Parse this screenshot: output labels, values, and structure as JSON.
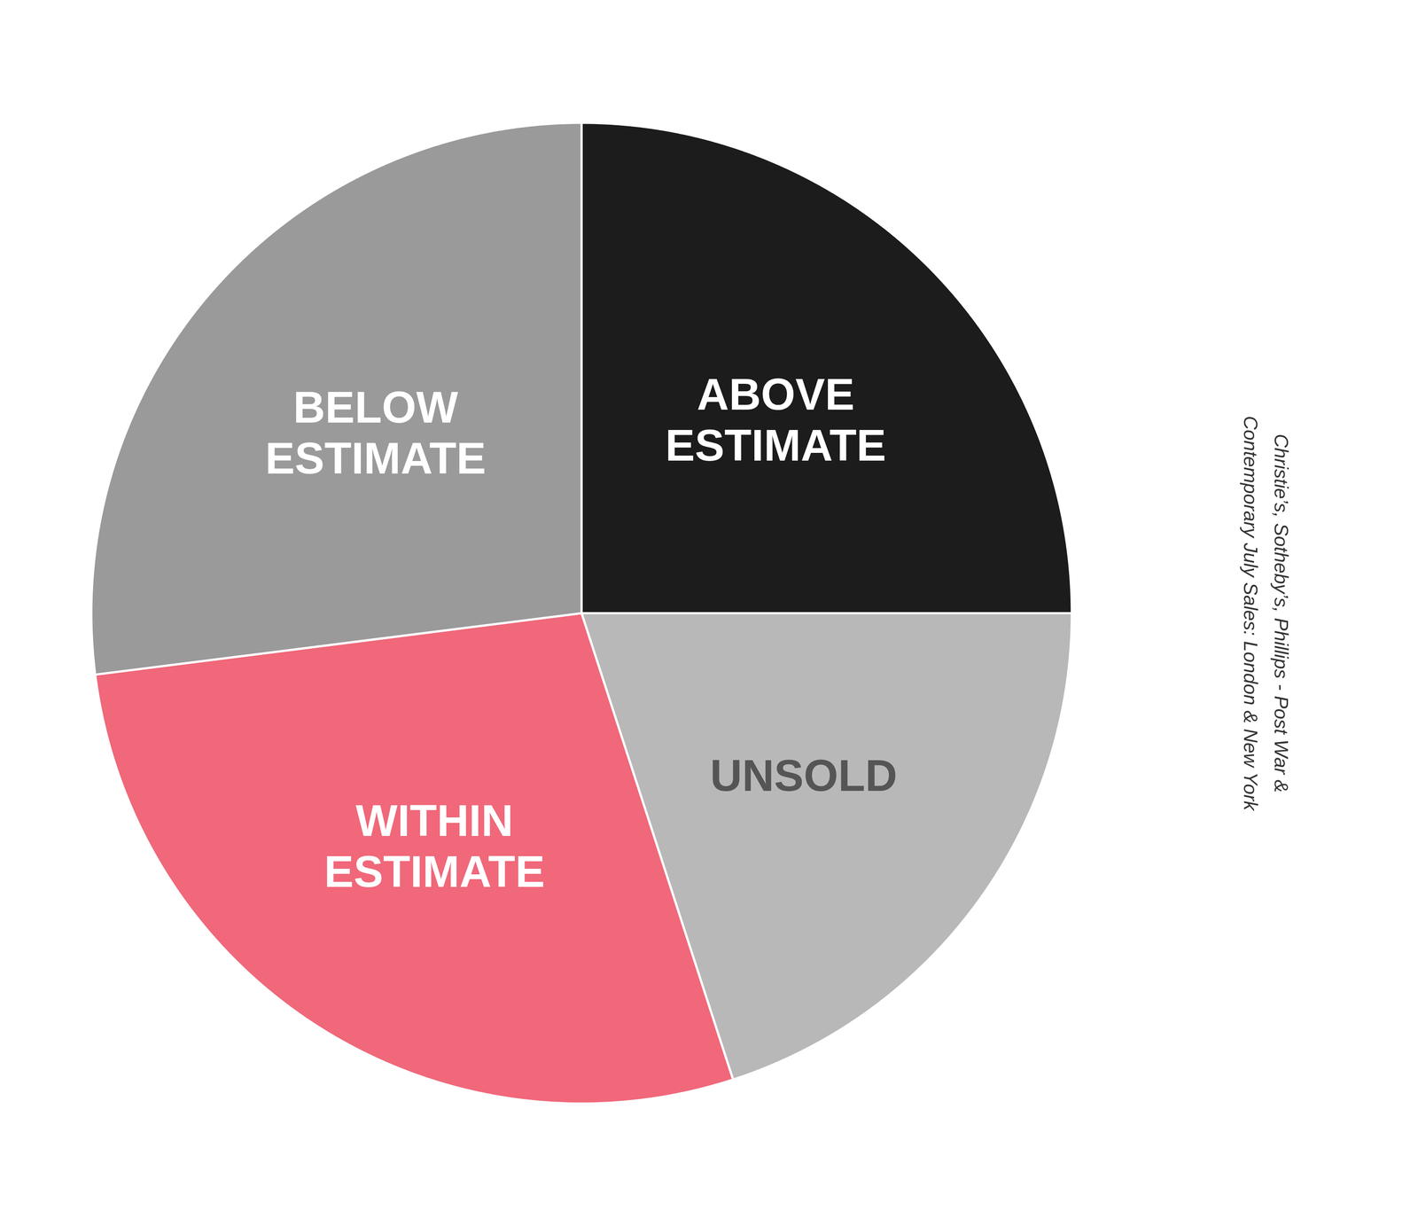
{
  "chart_data": {
    "type": "pie",
    "categories": [
      "ABOVE\nESTIMATE",
      "UNSOLD",
      "WITHIN\nESTIMATE",
      "BELOW\nESTIMATE"
    ],
    "values": [
      25,
      20,
      28,
      27
    ],
    "colors": [
      "#1c1c1c",
      "#b8b8b8",
      "#f0687a",
      "#9a9a9a"
    ],
    "annotations": [
      "Christie’s, Sotheby’s, Phillips - Post War &\nContemporary July Sales: London & New York"
    ]
  }
}
